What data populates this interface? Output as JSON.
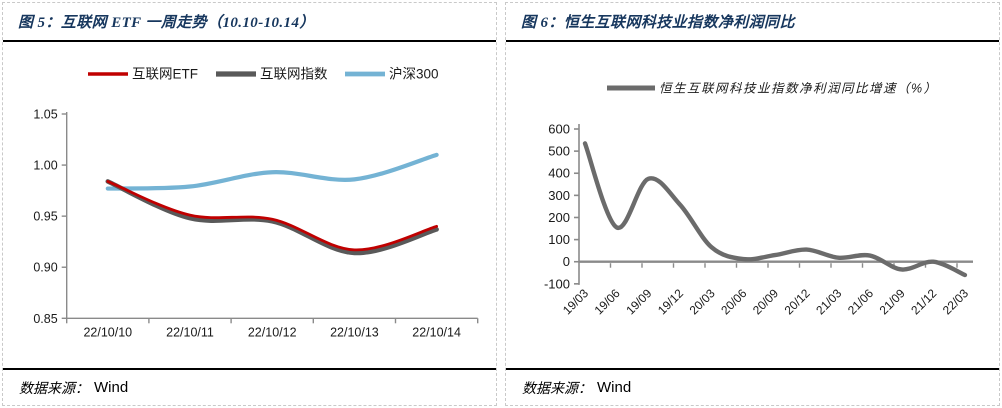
{
  "page": {
    "figures": [
      {
        "title": "图 5：互联网 ETF 一周走势（10.10-10.14）",
        "source_label": "数据来源：",
        "source_value": "Wind"
      },
      {
        "title": "图 6：恒生互联网科技业指数净利润同比",
        "source_label": "数据来源：",
        "source_value": "Wind"
      }
    ]
  },
  "colors": {
    "title_navy": "#17375E",
    "etf_red": "#C00000",
    "index_gray": "#595959",
    "hs300_blue": "#74B3D4",
    "hsi_line_gray": "#6B6B6B",
    "axis_gray": "#8A8A8A",
    "rule_black": "#000000",
    "dashed_border_gray": "#C9C9C9"
  },
  "chart_data": [
    {
      "type": "line",
      "title": "互联网 ETF 一周走势（10.10-10.14）",
      "categories": [
        "22/10/10",
        "22/10/11",
        "22/10/12",
        "22/10/13",
        "22/10/14"
      ],
      "series": [
        {
          "name": "互联网ETF",
          "color": "#C00000",
          "values": [
            0.984,
            0.951,
            0.947,
            0.917,
            0.94
          ]
        },
        {
          "name": "互联网指数",
          "color": "#595959",
          "values": [
            0.984,
            0.948,
            0.945,
            0.914,
            0.937
          ]
        },
        {
          "name": "沪深300",
          "color": "#74B3D4",
          "values": [
            0.977,
            0.979,
            0.993,
            0.986,
            1.01
          ]
        }
      ],
      "ylim": [
        0.85,
        1.05
      ],
      "ytick_labels": [
        "0.85",
        "0.90",
        "0.95",
        "1.00",
        "1.05"
      ],
      "grid": false,
      "legend_position": "top"
    },
    {
      "type": "line",
      "title": "恒生互联网科技业指数净利润同比",
      "categories": [
        "19/03",
        "19/06",
        "19/09",
        "19/12",
        "20/03",
        "20/06",
        "20/09",
        "20/12",
        "21/03",
        "21/06",
        "21/09",
        "21/12",
        "22/03"
      ],
      "series": [
        {
          "name": "恒生互联网科技业指数净利润同比增速（%）",
          "color": "#6B6B6B",
          "values": [
            535,
            155,
            375,
            258,
            65,
            12,
            30,
            55,
            18,
            28,
            -35,
            0,
            -60
          ]
        }
      ],
      "ylim": [
        -100,
        600
      ],
      "ytick_labels": [
        "-100",
        "0",
        "100",
        "200",
        "300",
        "400",
        "500",
        "600"
      ],
      "grid": false,
      "legend_position": "top"
    }
  ]
}
